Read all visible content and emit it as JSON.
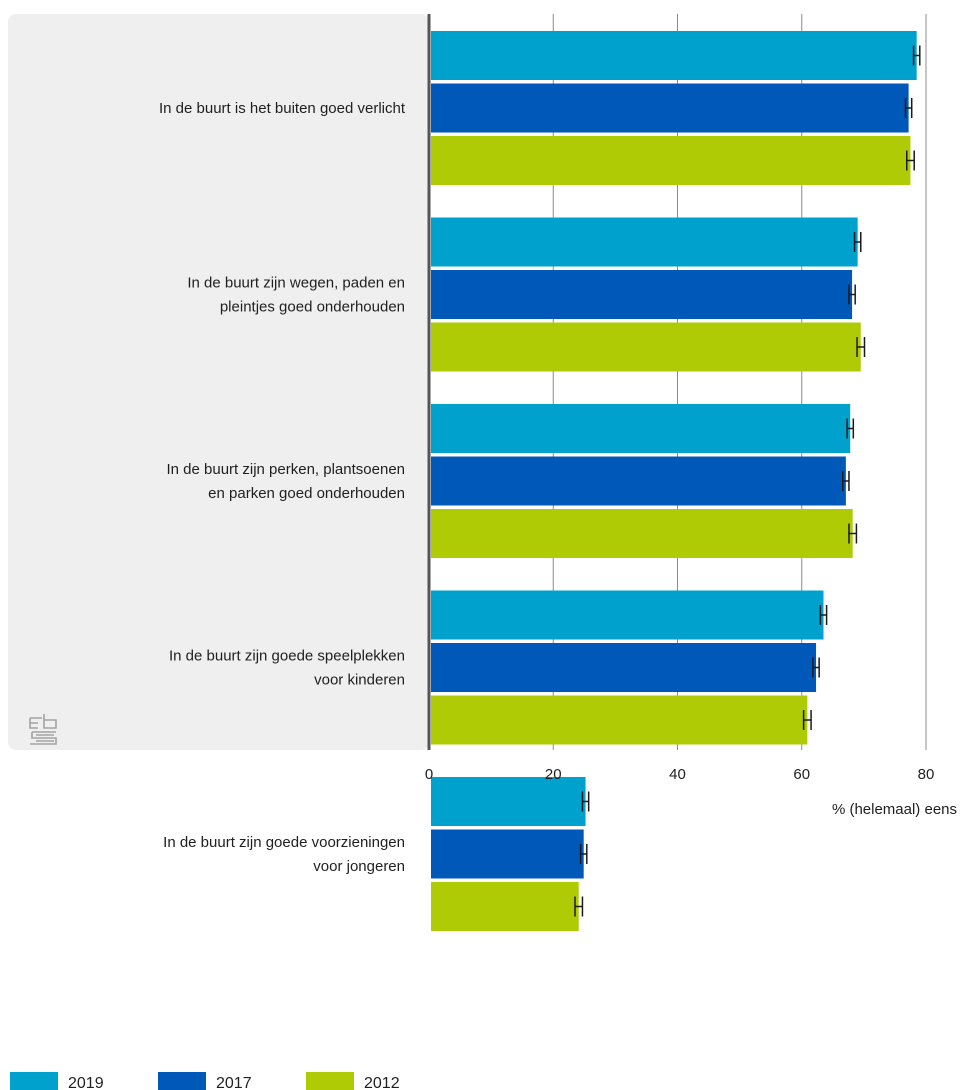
{
  "chart_data": {
    "type": "bar",
    "orientation": "horizontal",
    "categories": [
      [
        "In de buurt is het buiten goed verlicht"
      ],
      [
        "In de buurt zijn wegen, paden en",
        "pleintjes goed onderhouden"
      ],
      [
        "In de buurt zijn perken, plantsoenen",
        "en parken goed onderhouden"
      ],
      [
        "In de buurt zijn goede speelplekken",
        "voor kinderen"
      ],
      [
        "In de buurt zijn goede voorzieningen",
        "voor jongeren"
      ]
    ],
    "series": [
      {
        "name": "2019",
        "color": "#00a1cd",
        "values": [
          78.5,
          69.0,
          67.8,
          63.5,
          25.2
        ],
        "error": [
          0.5,
          0.5,
          0.5,
          0.5,
          0.5
        ]
      },
      {
        "name": "2017",
        "color": "#0058b8",
        "values": [
          77.2,
          68.1,
          67.1,
          62.3,
          24.9
        ],
        "error": [
          0.5,
          0.5,
          0.5,
          0.5,
          0.5
        ]
      },
      {
        "name": "2012",
        "color": "#afcb05",
        "values": [
          77.5,
          69.5,
          68.2,
          60.9,
          24.1
        ],
        "error": [
          0.6,
          0.6,
          0.6,
          0.6,
          0.6
        ]
      }
    ],
    "xlim": [
      0,
      80
    ],
    "xticks": [
      "0",
      "20",
      "40",
      "60",
      "80"
    ],
    "xlabel": "% (helemaal) eens",
    "ylabel": "",
    "title": "",
    "grid": "vertical",
    "legend": {
      "placement": "bottom-left",
      "entries": [
        "2019",
        "2017",
        "2012"
      ]
    }
  },
  "logo": {
    "icon": "cbs-logo-icon",
    "text": "cbs",
    "color": "#9a9a9a"
  }
}
